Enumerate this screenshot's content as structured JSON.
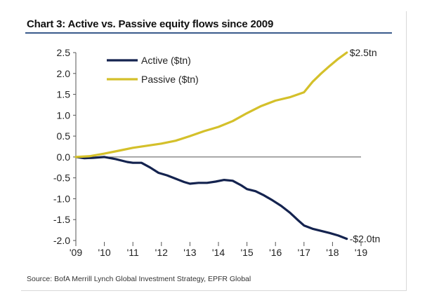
{
  "title": "Chart 3: Active vs. Passive equity flows since 2009",
  "source": "Source: BofA Merrill Lynch Global Investment Strategy, EPFR Global",
  "colors": {
    "active": "#14234f",
    "passive": "#d4c02a",
    "title_rule": "#3a5a8c"
  },
  "chart_data": {
    "type": "line",
    "title": "Chart 3: Active vs. Passive equity flows since 2009",
    "xlabel": "",
    "ylabel": "",
    "xlim": [
      2009,
      2019
    ],
    "ylim": [
      -2.0,
      2.5
    ],
    "x_tick_labels": [
      "'09",
      "'10",
      "'11",
      "'12",
      "'13",
      "'14",
      "'15",
      "'16",
      "'17",
      "'18",
      "'19"
    ],
    "x_ticks": [
      2009,
      2010,
      2011,
      2012,
      2013,
      2014,
      2015,
      2016,
      2017,
      2018,
      2019
    ],
    "y_ticks": [
      2.5,
      2.0,
      1.5,
      1.0,
      0.5,
      0.0,
      -0.5,
      -1.0,
      -1.5,
      -2.0
    ],
    "y_tick_labels": [
      "2.5",
      "2.0",
      "1.5",
      "1.0",
      "0.5",
      "0.0",
      "-0.5",
      "-1.0",
      "-1.5",
      "-2.0"
    ],
    "grid": false,
    "legend_position": "top-left",
    "series": [
      {
        "name": "Active ($tn)",
        "color": "#14234f",
        "end_label": "-$2.0tn",
        "x": [
          2009.0,
          2009.3,
          2009.6,
          2010.0,
          2010.4,
          2010.8,
          2011.0,
          2011.3,
          2011.6,
          2011.9,
          2012.2,
          2012.5,
          2012.8,
          2013.0,
          2013.3,
          2013.6,
          2013.9,
          2014.2,
          2014.5,
          2014.8,
          2015.0,
          2015.3,
          2015.6,
          2015.9,
          2016.2,
          2016.5,
          2016.8,
          2017.0,
          2017.3,
          2017.6,
          2017.9,
          2018.2,
          2018.5
        ],
        "y": [
          0.0,
          -0.03,
          -0.02,
          0.0,
          -0.05,
          -0.12,
          -0.14,
          -0.14,
          -0.25,
          -0.38,
          -0.44,
          -0.52,
          -0.6,
          -0.64,
          -0.62,
          -0.62,
          -0.59,
          -0.55,
          -0.57,
          -0.68,
          -0.77,
          -0.82,
          -0.92,
          -1.04,
          -1.17,
          -1.33,
          -1.52,
          -1.64,
          -1.72,
          -1.77,
          -1.82,
          -1.88,
          -1.96
        ]
      },
      {
        "name": "Passive ($tn)",
        "color": "#d4c02a",
        "end_label": "$2.5tn",
        "x": [
          2009.0,
          2009.5,
          2010.0,
          2010.5,
          2011.0,
          2011.5,
          2012.0,
          2012.5,
          2013.0,
          2013.5,
          2014.0,
          2014.5,
          2015.0,
          2015.5,
          2016.0,
          2016.5,
          2017.0,
          2017.3,
          2017.6,
          2017.9,
          2018.2,
          2018.5
        ],
        "y": [
          0.0,
          0.02,
          0.08,
          0.15,
          0.22,
          0.27,
          0.32,
          0.39,
          0.5,
          0.62,
          0.72,
          0.86,
          1.05,
          1.22,
          1.35,
          1.43,
          1.55,
          1.8,
          2.0,
          2.18,
          2.35,
          2.5
        ]
      }
    ]
  }
}
